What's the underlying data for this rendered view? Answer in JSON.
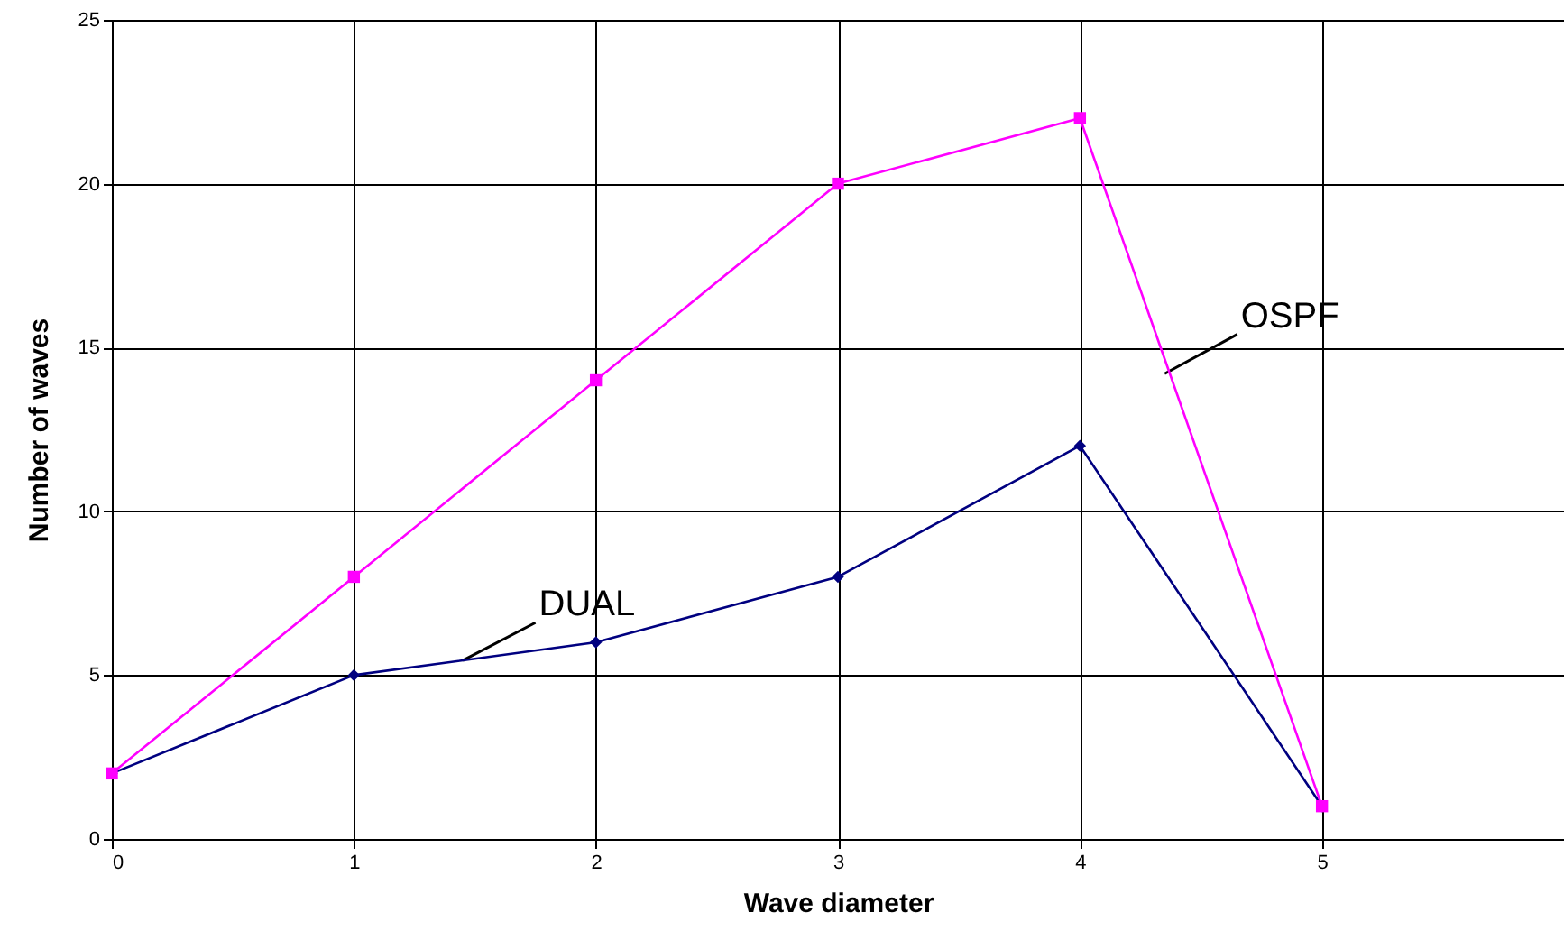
{
  "chart_data": {
    "type": "line",
    "xlabel": "Wave diameter",
    "ylabel": "Number of waves",
    "x": [
      0,
      1,
      2,
      3,
      4,
      5
    ],
    "series": [
      {
        "name": "OSPF",
        "color": "#ff00ff",
        "marker": "square",
        "values": [
          2,
          8,
          14,
          20,
          22,
          1
        ]
      },
      {
        "name": "DUAL",
        "color": "#000080",
        "marker": "diamond",
        "values": [
          2,
          5,
          6,
          8,
          12,
          1
        ]
      }
    ],
    "xlim": [
      0,
      6
    ],
    "xticks": [
      0,
      1,
      2,
      3,
      4,
      5
    ],
    "ylim": [
      0,
      25
    ],
    "yticks": [
      0,
      5,
      10,
      15,
      20,
      25
    ],
    "grid": true,
    "line_style": "solid"
  }
}
